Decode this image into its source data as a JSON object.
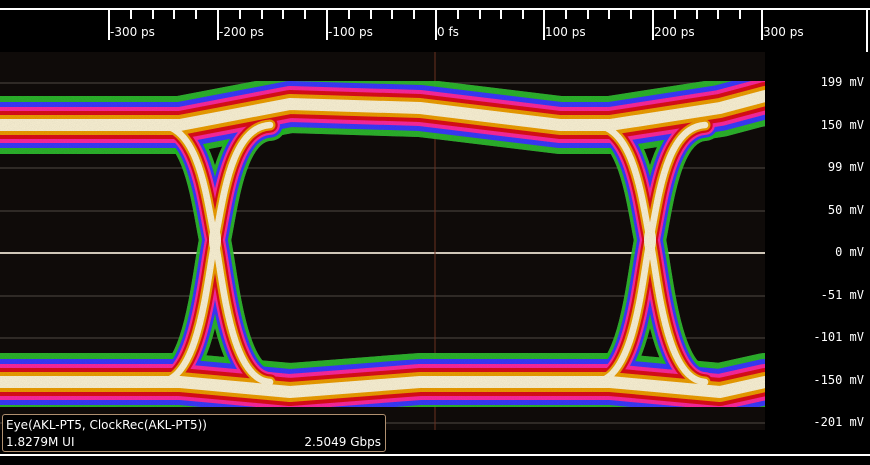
{
  "x_axis": {
    "ticks": [
      "-300 ps",
      "-200 ps",
      "-100 ps",
      "0 fs",
      "100 ps",
      "200 ps",
      "300 ps"
    ]
  },
  "y_axis": {
    "ticks": [
      "199 mV",
      "150 mV",
      "99 mV",
      "50 mV",
      "0 mV",
      "-51 mV",
      "-101 mV",
      "-150 mV",
      "-201 mV"
    ]
  },
  "info": {
    "title": "Eye(AKL-PT5, ClockRec(AKL-PT5))",
    "ui_count": "1.8279M UI",
    "bitrate": "2.5049 Gbps"
  },
  "colors": {
    "background": "#0f0b09",
    "density_low": "#1fc21f",
    "density_mid1": "#3b3bff",
    "density_mid2": "#ff2aa0",
    "density_mid3": "#e0101a",
    "density_high": "#f0a000",
    "density_peak": "#fff6d8"
  }
}
